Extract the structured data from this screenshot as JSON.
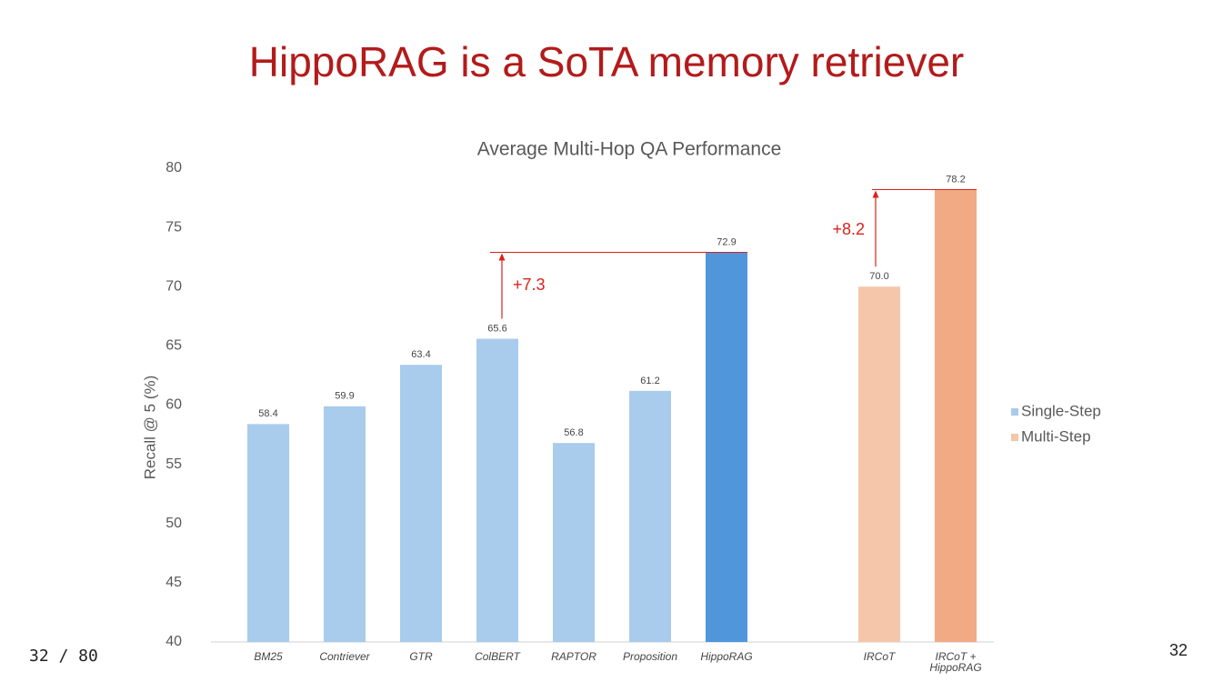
{
  "slide": {
    "title": "HippoRAG is a SoTA memory retriever",
    "page_counter": "32 / 80",
    "page_number": "32"
  },
  "chart_data": {
    "type": "bar",
    "title": "Average Multi-Hop QA Performance",
    "y_label": "Recall @ 5 (%)",
    "categories": [
      "BM25",
      "Contriever",
      "GTR",
      "ColBERT",
      "RAPTOR",
      "Proposition",
      "HippoRAG",
      null,
      "IRCoT",
      "IRCoT + HippoRAG"
    ],
    "series": [
      {
        "name": "Single-Step",
        "color": "#a9cbec",
        "bar_colors": [
          "#a9cbec",
          "#a9cbec",
          "#a9cbec",
          "#a9cbec",
          "#a9cbec",
          "#a9cbec",
          "#5096db",
          null,
          null,
          null
        ],
        "values": [
          58.4,
          59.9,
          63.4,
          65.6,
          56.8,
          61.2,
          72.9,
          null,
          null,
          null
        ],
        "value_labels": [
          "58.4",
          "59.9",
          "63.4",
          "65.6",
          "56.8",
          "61.2",
          "72.9",
          null,
          null,
          null
        ]
      },
      {
        "name": "Multi-Step",
        "color": "#f5c6aa",
        "bar_colors": [
          null,
          null,
          null,
          null,
          null,
          null,
          null,
          null,
          "#f5c6aa",
          "#f2aa85"
        ],
        "values": [
          null,
          null,
          null,
          null,
          null,
          null,
          null,
          null,
          70.0,
          78.2
        ],
        "value_labels": [
          null,
          null,
          null,
          null,
          null,
          null,
          null,
          null,
          "70.0",
          "78.2"
        ]
      }
    ],
    "annotations": [
      {
        "text": "+7.3",
        "from": "ColBERT",
        "to": "HippoRAG",
        "color": "#d9221b"
      },
      {
        "text": "+8.2",
        "from": "IRCoT",
        "to": "IRCoT + HippoRAG",
        "color": "#d9221b"
      }
    ],
    "ylim": [
      40,
      80
    ],
    "yticks": [
      40,
      45,
      50,
      55,
      60,
      65,
      70,
      75,
      80
    ],
    "grid": false,
    "legend": "right"
  }
}
